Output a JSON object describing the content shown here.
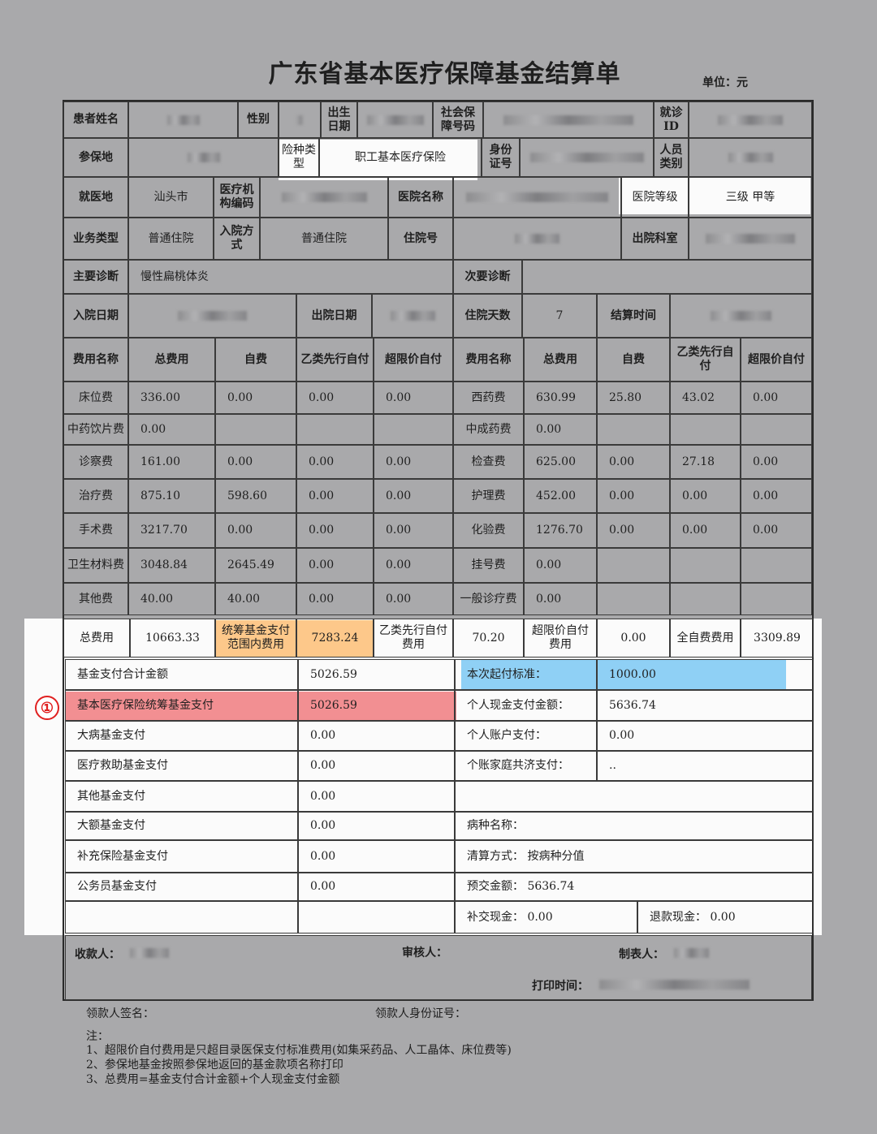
{
  "title": "广东省基本医疗保障基金结算单",
  "unit": "单位：元",
  "marker": "①",
  "colors": {
    "orange_highlight": "#fdc88a",
    "blue_highlight": "#8fd0f5",
    "red_highlight": "#f28f92",
    "marker": "#e02020"
  },
  "patient": {
    "name_label": "患者姓名",
    "gender_label": "性别",
    "birth_label": "出生日期",
    "ssn_label": "社会保障号码",
    "visit_id_label": "就诊ID",
    "insured_place_label": "参保地",
    "insurance_type_label": "险种类型",
    "insurance_type": "职工基本医疗保险",
    "id_card_label": "身份证号",
    "person_type_label": "人员类别",
    "treat_place_label": "就医地",
    "treat_place": "汕头市",
    "org_code_label": "医疗机构编码",
    "hospital_name_label": "医院名称",
    "hospital_level_label": "医院等级",
    "hospital_level": "三级 甲等",
    "business_type_label": "业务类型",
    "business_type": "普通住院",
    "admission_mode_label": "入院方式",
    "admission_mode": "普通住院",
    "inpatient_no_label": "住院号",
    "discharge_dept_label": "出院科室",
    "main_diag_label": "主要诊断",
    "main_diag": "慢性扁桃体炎",
    "second_diag_label": "次要诊断",
    "admit_date_label": "入院日期",
    "discharge_date_label": "出院日期",
    "days_label": "住院天数",
    "days": "7",
    "settle_time_label": "结算时间"
  },
  "fees": {
    "headers": [
      "费用名称",
      "总费用",
      "自费",
      "乙类先行自付",
      "超限价自付"
    ],
    "left": [
      [
        "床位费",
        "336.00",
        "0.00",
        "0.00",
        "0.00"
      ],
      [
        "中药饮片费",
        "0.00",
        "",
        "",
        ""
      ],
      [
        "诊察费",
        "161.00",
        "0.00",
        "0.00",
        "0.00"
      ],
      [
        "治疗费",
        "875.10",
        "598.60",
        "0.00",
        "0.00"
      ],
      [
        "手术费",
        "3217.70",
        "0.00",
        "0.00",
        "0.00"
      ],
      [
        "卫生材料费",
        "3048.84",
        "2645.49",
        "0.00",
        "0.00"
      ],
      [
        "其他费",
        "40.00",
        "40.00",
        "0.00",
        "0.00"
      ]
    ],
    "right": [
      [
        "西药费",
        "630.99",
        "25.80",
        "43.02",
        "0.00"
      ],
      [
        "中成药费",
        "0.00",
        "",
        "",
        ""
      ],
      [
        "检查费",
        "625.00",
        "0.00",
        "27.18",
        "0.00"
      ],
      [
        "护理费",
        "452.00",
        "0.00",
        "0.00",
        "0.00"
      ],
      [
        "化验费",
        "1276.70",
        "0.00",
        "0.00",
        "0.00"
      ],
      [
        "挂号费",
        "0.00",
        "",
        "",
        ""
      ],
      [
        "一般诊疗费",
        "0.00",
        "",
        "",
        ""
      ]
    ]
  },
  "totals": {
    "total_label": "总费用",
    "total": "10663.33",
    "pooled_scope_label": "统筹基金支付范围内费用",
    "pooled_scope": "7283.24",
    "class_b_label": "乙类先行自付费用",
    "class_b": "70.20",
    "over_limit_label": "超限价自付费用",
    "over_limit": "0.00",
    "full_self_label": "全自费费用",
    "full_self": "3309.89"
  },
  "funds": [
    [
      "基金支付合计金额",
      "5026.59"
    ],
    [
      "基本医疗保险统筹基金支付",
      "5026.59"
    ],
    [
      "大病基金支付",
      "0.00"
    ],
    [
      "医疗救助基金支付",
      "0.00"
    ],
    [
      "其他基金支付",
      "0.00"
    ],
    [
      "大额基金支付",
      "0.00"
    ],
    [
      "补充保险基金支付",
      "0.00"
    ],
    [
      "公务员基金支付",
      "0.00"
    ]
  ],
  "personal": {
    "deductible_label": "本次起付标准：",
    "deductible": "1000.00",
    "cash_label": "个人现金支付金额：",
    "cash": "5636.74",
    "account_label": "个人账户支付：",
    "account": "0.00",
    "family_label": "个账家庭共济支付：",
    "family": "..",
    "disease_label": "病种名称：",
    "settle_method": "清算方式： 按病种分值",
    "prepaid": "预交金额： 5636.74",
    "supplement": "补交现金： 0.00",
    "refund": "退款现金： 0.00"
  },
  "footer": {
    "cashier_label": "收款人：",
    "auditor_label": "审核人：",
    "maker_label": "制表人：",
    "print_time_label": "打印时间：",
    "recipient_sign_label": "领款人签名：",
    "recipient_id_label": "领款人身份证号："
  },
  "notes": [
    "注：",
    "1、超限价自付费用是只超目录医保支付标准费用(如集采药品、人工晶体、床位费等)",
    "2、参保地基金按照参保地返回的基金款项名称打印",
    "3、总费用=基金支付合计金额+个人现金支付金额"
  ]
}
